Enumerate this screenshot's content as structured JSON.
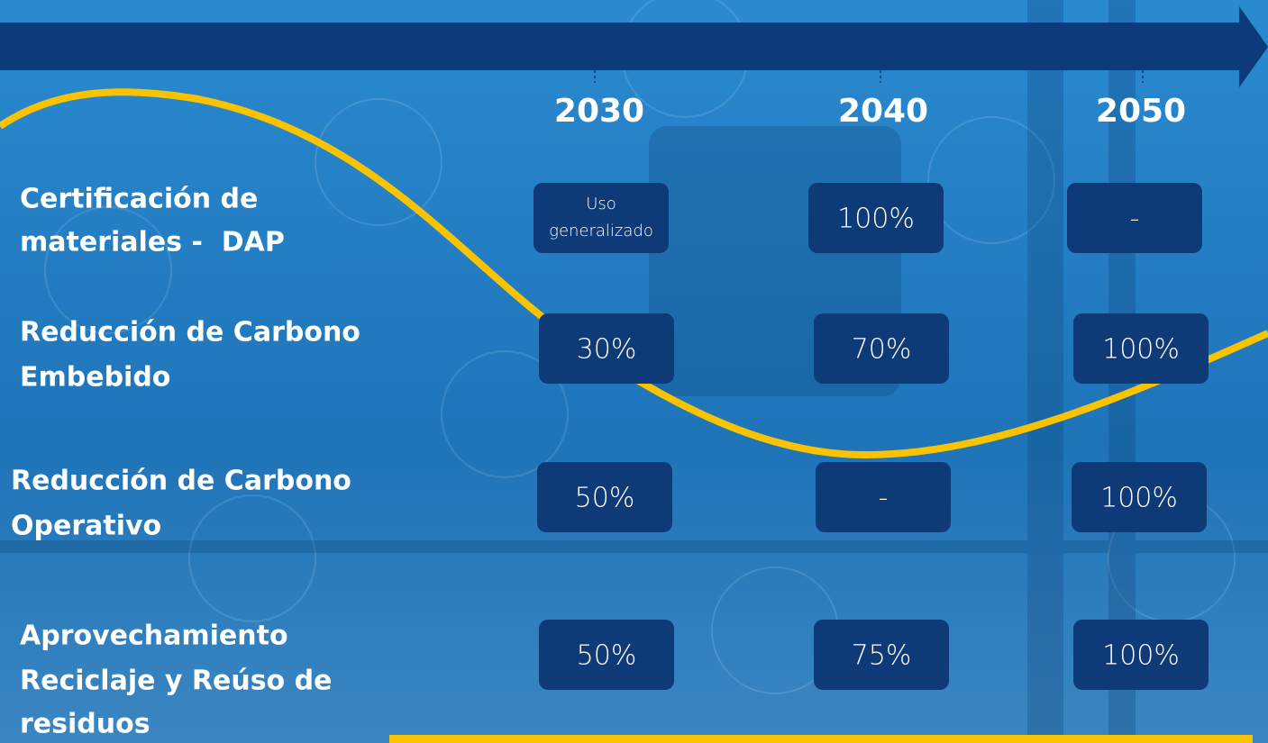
{
  "header": {
    "years": [
      "2030",
      "2040",
      "2050"
    ]
  },
  "table": {
    "rows": [
      {
        "label": [
          "Certificación de",
          "materiales -  DAP"
        ],
        "cells": [
          [
            "Uso",
            "generalizado"
          ],
          [
            "100%"
          ],
          [
            "-"
          ]
        ]
      },
      {
        "label": [
          "Reducción de Carbono",
          "Embebido"
        ],
        "cells": [
          [
            "30%"
          ],
          [
            "70%"
          ],
          [
            "100%"
          ]
        ]
      },
      {
        "label": [
          "Reducción de Carbono",
          "Operativo"
        ],
        "cells": [
          [
            "50%"
          ],
          [
            "-"
          ],
          [
            "100%"
          ]
        ]
      },
      {
        "label": [
          "Aprovechamiento",
          "Reciclaje y Reúso de",
          "residuos"
        ],
        "cells": [
          [
            "50%"
          ],
          [
            "75%"
          ],
          [
            "100%"
          ]
        ]
      }
    ]
  }
}
